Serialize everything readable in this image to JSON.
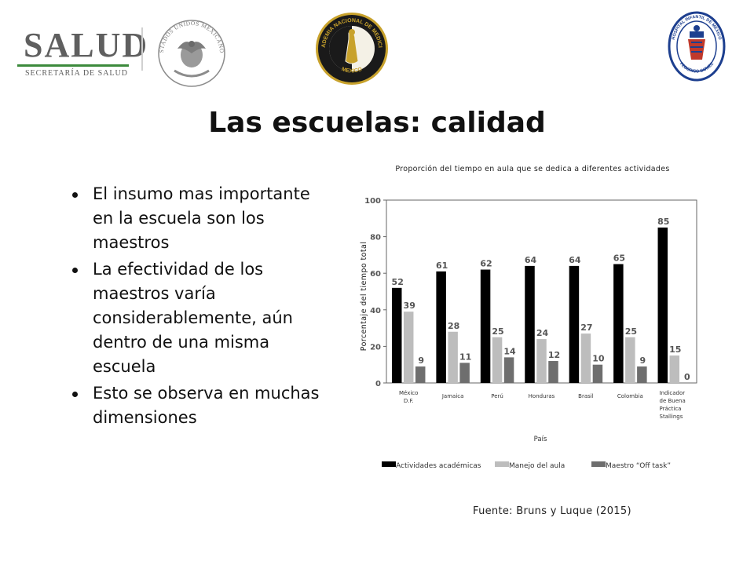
{
  "header": {
    "logo_salud": {
      "word": "SALUD",
      "subtitle": "SECRETARÍA DE SALUD"
    },
    "logo_mexico": {
      "text": "ESTADOS UNIDOS MEXICANOS"
    },
    "logo_academia": {
      "text_top": "ACADEMIA NACIONAL DE MEDICINA",
      "text_bottom": "MEXICO"
    },
    "logo_hospital": {
      "text_top": "HOSPITAL INFANTIL DE MEXICO",
      "text_bottom": "FEDERICO GOMEZ"
    },
    "colors": {
      "salud_green": "#3c8a3c",
      "salud_gray": "#5f5f5f",
      "academia_gold": "#c8a22c"
    }
  },
  "slide": {
    "title": "Las escuelas: calidad",
    "bullets": [
      "El insumo mas importante en la escuela son los maestros",
      "La efectividad de los maestros varía considerablemente, aún dentro de una misma escuela",
      "Esto se observa en muchas dimensiones"
    ],
    "source": "Fuente: Bruns y Luque (2015)"
  },
  "chart_data": {
    "type": "bar",
    "title": "Proporción del tiempo en aula que se dedica a diferentes actividades",
    "xlabel": "País",
    "ylabel": "Porcentaje del tiempo total",
    "ylim": [
      0,
      100
    ],
    "yticks": [
      0,
      20,
      40,
      60,
      80,
      100
    ],
    "grid": false,
    "legend_position": "bottom",
    "categories": [
      [
        "México",
        "D.F."
      ],
      [
        "Jamaica"
      ],
      [
        "Perú"
      ],
      [
        "Honduras"
      ],
      [
        "Brasil"
      ],
      [
        "Colombia"
      ],
      [
        "Indicador",
        "de Buena",
        "Práctica",
        "Stallings"
      ]
    ],
    "series": [
      {
        "name": "Actividades académicas",
        "color": "#000000",
        "values": [
          52,
          61,
          62,
          64,
          64,
          65,
          85
        ]
      },
      {
        "name": "Manejo del aula",
        "color": "#bdbdbd",
        "values": [
          39,
          28,
          25,
          24,
          27,
          25,
          15
        ]
      },
      {
        "name": "Maestro “Off task”",
        "color": "#6e6e6e",
        "values": [
          9,
          11,
          14,
          12,
          10,
          9,
          0
        ]
      }
    ]
  }
}
